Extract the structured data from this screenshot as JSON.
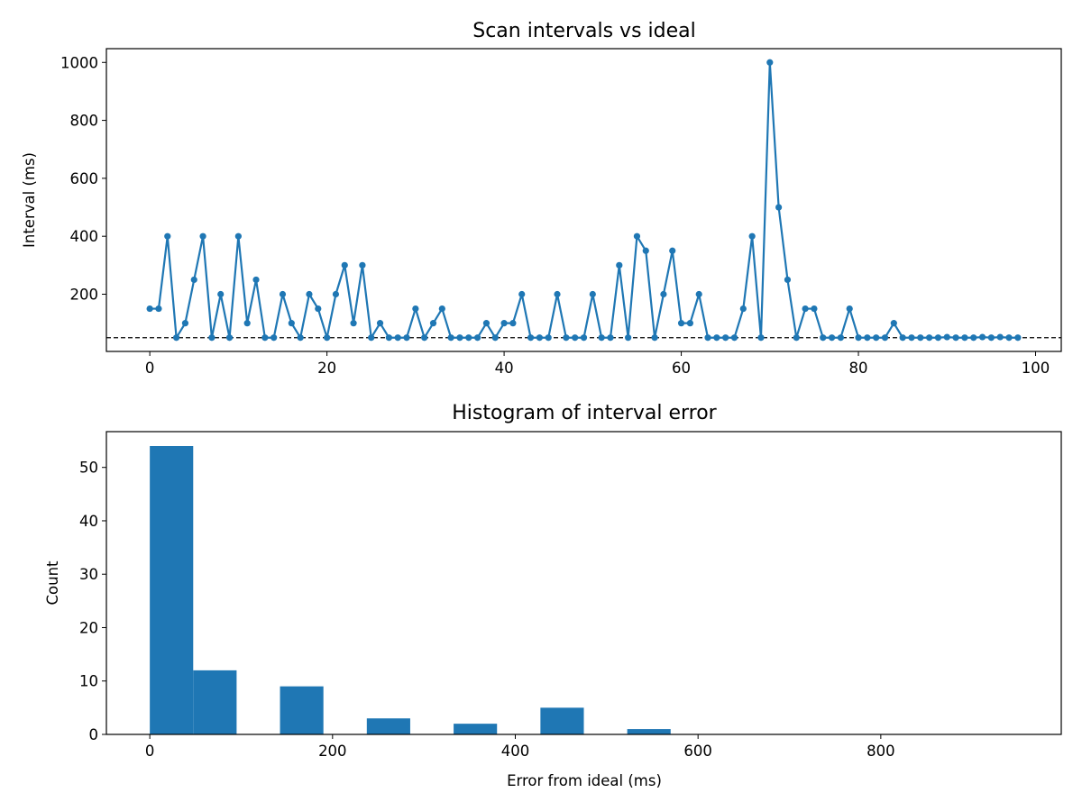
{
  "colors": {
    "series": "#1f77b4",
    "reference_line": "#000000",
    "axes": "#000000",
    "background": "#ffffff"
  },
  "chart_data": [
    {
      "type": "line",
      "title": "Scan intervals vs ideal",
      "xlabel": "",
      "ylabel": "Interval (ms)",
      "xlim": [
        -4.9,
        102.9
      ],
      "ylim": [
        2.5,
        1047.5
      ],
      "xticks": [
        0,
        20,
        40,
        60,
        80,
        100
      ],
      "yticks": [
        200,
        400,
        600,
        800,
        1000
      ],
      "grid": false,
      "markers": true,
      "reference_line": {
        "y": 50,
        "style": "dashed"
      },
      "series": [
        {
          "x": [
            0,
            1,
            2,
            3,
            4,
            5,
            6,
            7,
            8,
            9,
            10,
            11,
            12,
            13,
            14,
            15,
            16,
            17,
            18,
            19,
            20,
            21,
            22,
            23,
            24,
            25,
            26,
            27,
            28,
            29,
            30,
            31,
            32,
            33,
            34,
            35,
            36,
            37,
            38,
            39,
            40,
            41,
            42,
            43,
            44,
            45,
            46,
            47,
            48,
            49,
            50,
            51,
            52,
            53,
            54,
            55,
            56,
            57,
            58,
            59,
            60,
            61,
            62,
            63,
            64,
            65,
            66,
            67,
            68,
            69,
            70,
            71,
            72,
            73,
            74,
            75,
            76,
            77,
            78,
            79,
            80,
            81,
            82,
            83,
            84,
            85,
            86,
            87,
            88,
            89,
            90,
            91,
            92,
            93,
            94,
            95,
            96,
            97,
            98
          ],
          "y": [
            150,
            150,
            400,
            50,
            100,
            250,
            400,
            50,
            200,
            50,
            400,
            100,
            250,
            50,
            50,
            200,
            100,
            50,
            200,
            150,
            50,
            200,
            300,
            100,
            300,
            50,
            100,
            50,
            50,
            50,
            150,
            50,
            100,
            150,
            50,
            50,
            50,
            50,
            100,
            50,
            100,
            100,
            200,
            50,
            50,
            50,
            200,
            50,
            50,
            50,
            200,
            50,
            50,
            300,
            50,
            400,
            350,
            50,
            200,
            350,
            100,
            100,
            200,
            50,
            50,
            50,
            50,
            150,
            400,
            50,
            1000,
            500,
            250,
            50,
            150,
            150,
            50,
            50,
            50,
            150,
            50,
            50,
            50,
            50,
            100,
            50,
            50,
            50,
            50,
            50,
            52,
            50,
            50,
            50,
            52,
            50,
            52,
            50,
            50
          ]
        }
      ]
    },
    {
      "type": "bar",
      "title": "Histogram of interval error",
      "xlabel": "Error from ideal (ms)",
      "ylabel": "Count",
      "xlim": [
        -47.5,
        997.5
      ],
      "ylim": [
        0,
        56.7
      ],
      "xticks": [
        0,
        200,
        400,
        600,
        800
      ],
      "yticks": [
        0,
        10,
        20,
        30,
        40,
        50
      ],
      "grid": false,
      "bin_edges": [
        0,
        47.5,
        95,
        142.5,
        190,
        237.5,
        285,
        332.5,
        380,
        427.5,
        475,
        522.5,
        570,
        617.5,
        665,
        712.5,
        760,
        807.5,
        855,
        902.5,
        950
      ],
      "values": [
        54,
        12,
        0,
        9,
        0,
        3,
        0,
        2,
        0,
        5,
        0,
        1,
        0,
        0,
        0,
        0,
        0,
        0,
        0,
        0,
        1
      ]
    }
  ]
}
